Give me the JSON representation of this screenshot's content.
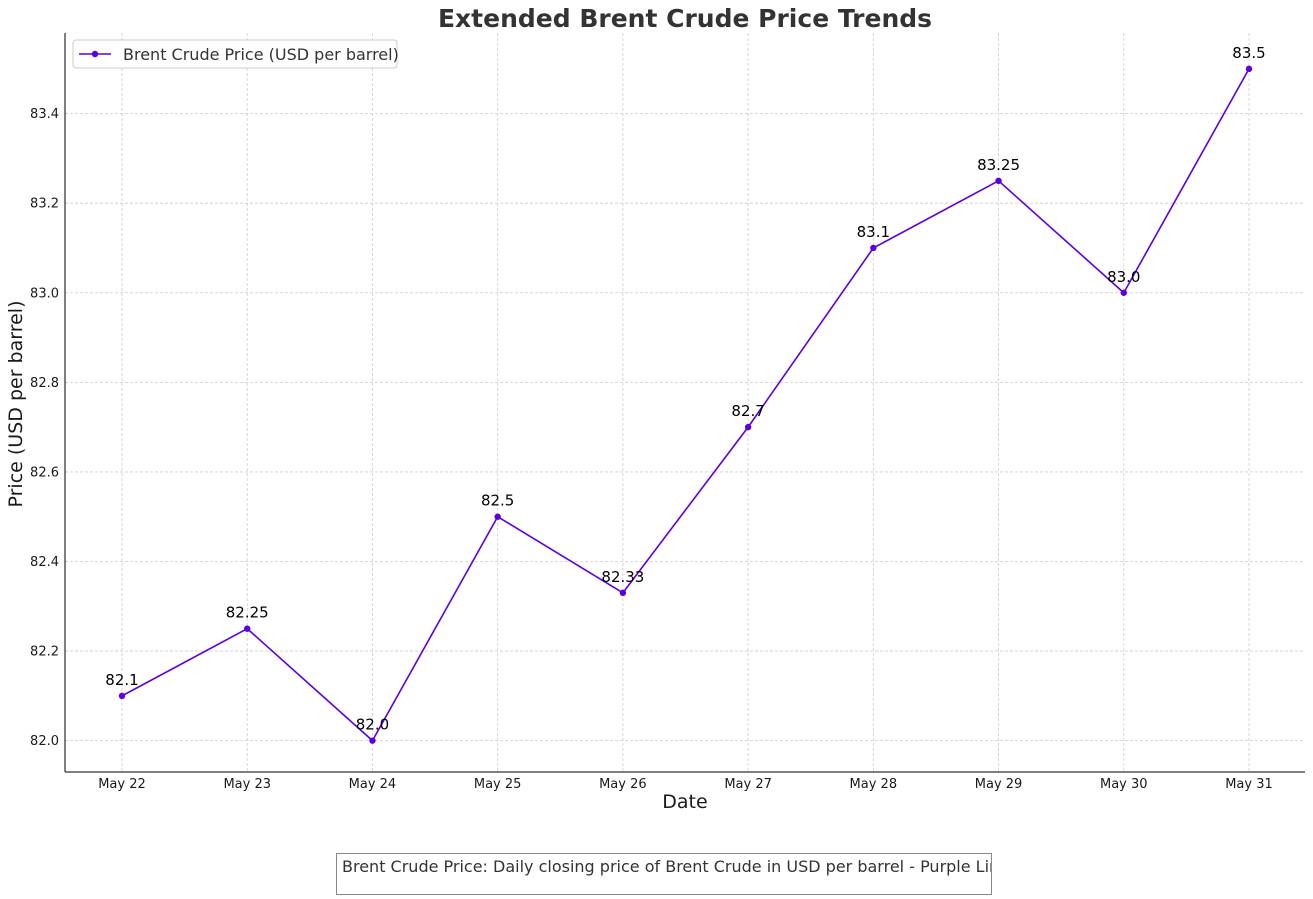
{
  "caption": "Brent Crude Price: Daily closing price of Brent Crude in USD per barrel - Purple Line",
  "chart_data": {
    "type": "line",
    "title": "Extended Brent Crude Price Trends",
    "xlabel": "Date",
    "ylabel": "Price (USD per barrel)",
    "categories": [
      "May 22",
      "May 23",
      "May 24",
      "May 25",
      "May 26",
      "May 27",
      "May 28",
      "May 29",
      "May 30",
      "May 31"
    ],
    "ylim": [
      81.93,
      83.58
    ],
    "yticks": [
      82.0,
      82.2,
      82.4,
      82.6,
      82.8,
      83.0,
      83.2,
      83.4
    ],
    "ytick_labels": [
      "82.0",
      "82.2",
      "82.4",
      "82.6",
      "82.8",
      "83.0",
      "83.2",
      "83.4"
    ],
    "grid": true,
    "legend_position": "top-left",
    "series": [
      {
        "name": "Brent Crude Price (USD per barrel)",
        "color": "#5a00e0",
        "values": [
          82.1,
          82.25,
          82.0,
          82.5,
          82.33,
          82.7,
          83.1,
          83.25,
          83.0,
          83.5
        ],
        "labels": [
          "82.1",
          "82.25",
          "82.0",
          "82.5",
          "82.33",
          "82.7",
          "83.1",
          "83.25",
          "83.0",
          "83.5"
        ]
      }
    ]
  }
}
